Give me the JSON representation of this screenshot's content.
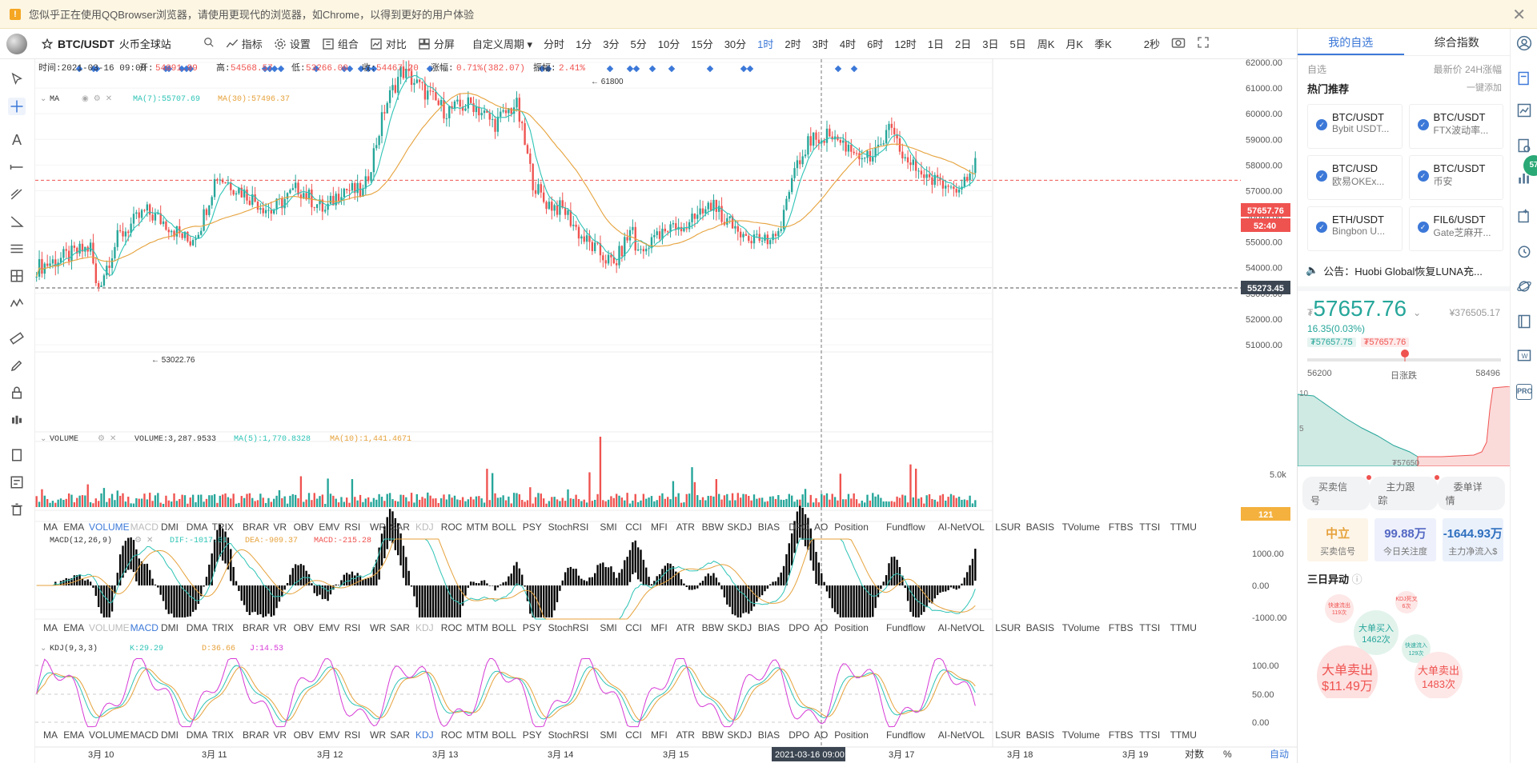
{
  "banner": {
    "text": "您似乎正在使用QQBrowser浏览器，请使用更现代的浏览器，如Chrome，以得到更好的用户体验",
    "close": "✕",
    "warn": "!"
  },
  "toolbar": {
    "symbol": "BTC/USDT",
    "exchange": "火币全球站",
    "tools": [
      "指标",
      "设置",
      "组合",
      "对比",
      "分屏"
    ],
    "custom_period": "自定义周期",
    "periods": [
      "分时",
      "1分",
      "3分",
      "5分",
      "10分",
      "15分",
      "30分",
      "1时",
      "2时",
      "3时",
      "4时",
      "6时",
      "12时",
      "1日",
      "2日",
      "3日",
      "5日",
      "周K",
      "月K",
      "季K"
    ],
    "active_period": "1时",
    "refresh": "2秒"
  },
  "ohlc_bar": {
    "time": "时间:2021-03-16 09:00",
    "open_label": "开:",
    "open": "54091.99",
    "high_label": "高:",
    "high": "54568.57",
    "low_label": "低:",
    "low": "53266.00",
    "close_label": "收:",
    "close": "54467.20",
    "change_label": "涨幅:",
    "change": "0.71%(382.07)",
    "amp_label": "振幅:",
    "amp": "2.41%"
  },
  "ma_legend": {
    "name": "MA",
    "ma7": "MA(7):55707.69",
    "ma30": "MA(30):57496.37"
  },
  "volume_legend": {
    "name": "VOLUME",
    "vol": "VOLUME:3,287.9533",
    "ma5": "MA(5):1,770.8328",
    "ma10": "MA(10):1,441.4671"
  },
  "macd_legend": {
    "name": "MACD(12,26,9)",
    "dif": "DIF:-1017.01",
    "dea": "DEA:-909.37",
    "macd": "MACD:-215.28"
  },
  "kdj_legend": {
    "name": "KDJ(9,3,3)",
    "k": "K:29.29",
    "d": "D:36.66",
    "j": "J:14.53"
  },
  "price_axis": [
    "62000.00",
    "61000.00",
    "60000.00",
    "59000.00",
    "58000.00",
    "57000.00",
    "56000.00",
    "55000.00",
    "54000.00",
    "53000.00",
    "52000.00",
    "51000.00"
  ],
  "price_tags": {
    "last": "57657.76",
    "countdown": "52:40",
    "cross": "55273.45",
    "volume": "121"
  },
  "annotations": {
    "high": "← 61800",
    "low": "← 53022.76"
  },
  "volume_axis": "5.0k",
  "macd_axis": [
    "1000.00",
    "0.00",
    "-1000.00"
  ],
  "kdj_axis": [
    "100.00",
    "50.00",
    "0.00"
  ],
  "indicators": [
    "MA",
    "EMA",
    "VOLUME",
    "MACD",
    "DMI",
    "DMA",
    "TRIX",
    "BRAR",
    "VR",
    "OBV",
    "EMV",
    "RSI",
    "WR",
    "SAR",
    "KDJ",
    "ROC",
    "MTM",
    "BOLL",
    "PSY",
    "StochRSI",
    "SMI",
    "CCI",
    "MFI",
    "ATR",
    "BBW",
    "SKDJ",
    "BIAS",
    "DPO",
    "AO",
    "Position",
    "Fundflow",
    "AI-NetVOL",
    "LSUR",
    "BASIS",
    "TVolume",
    "FTBS",
    "TTSI",
    "TTMU"
  ],
  "x_axis": [
    "3月 10",
    "3月 11",
    "3月 12",
    "3月 13",
    "3月 14",
    "3月 15",
    "3月 17",
    "3月 18",
    "3月 19"
  ],
  "x_cursor": "2021-03-16 09:00:00",
  "axis_modes": [
    "对数",
    "%",
    "自动"
  ],
  "colors": {
    "up": "#26a69a",
    "down": "#ef5350",
    "ma7": "#2ec4b6",
    "ma30": "#e6a23c",
    "accent": "#3c78d8",
    "k": "#2ec4b6",
    "d": "#e6a23c",
    "j": "#d63ad6"
  },
  "right": {
    "tabs": [
      "我的自选",
      "综合指数"
    ],
    "sub": {
      "label": "自选",
      "cols": "最新价  24H涨幅"
    },
    "hot": {
      "title": "热门推荐",
      "add": "一键添加"
    },
    "cards": [
      {
        "name": "BTC/USDT",
        "ex": "Bybit USDT..."
      },
      {
        "name": "BTC/USDT",
        "ex": "FTX波动率..."
      },
      {
        "name": "BTC/USD",
        "ex": "欧易OKEx..."
      },
      {
        "name": "BTC/USDT",
        "ex": "币安"
      },
      {
        "name": "ETH/USDT",
        "ex": "Bingbon U..."
      },
      {
        "name": "FIL6/USDT",
        "ex": "Gate芝麻开..."
      }
    ],
    "notice": "公告：Huobi Global恢复LUNA充...",
    "price": "57657.76",
    "price_prefix": "₮",
    "cny": "¥376505.17",
    "change": "16.35(0.03%)",
    "bid": "₮57657.75",
    "ask": "₮57657.76",
    "range_low": "56200",
    "range_label": "日涨跌",
    "range_high": "58496",
    "depth_label_left": "10",
    "depth_label_mid": "5",
    "depth_price": "₮57650",
    "buttons": [
      "买卖信号",
      "主力跟踪",
      "委单详情"
    ],
    "metrics": [
      {
        "value": "中立",
        "label": "买卖信号"
      },
      {
        "value": "99.88万",
        "label": "今日关注度"
      },
      {
        "value": "-1644.93万",
        "label": "主力净流入$"
      }
    ],
    "three_day": "三日异动",
    "bubbles": [
      {
        "t": "快速流出",
        "v": "119次"
      },
      {
        "t": "KDJ死叉",
        "v": "6次"
      },
      {
        "t": "大单买入",
        "v": "1462次"
      },
      {
        "t": "快速流入",
        "v": "129次"
      },
      {
        "t": "大单卖出",
        "v": "$11.49万"
      },
      {
        "t": "大单卖出",
        "v": "1483次"
      }
    ],
    "side_badge": "57"
  }
}
